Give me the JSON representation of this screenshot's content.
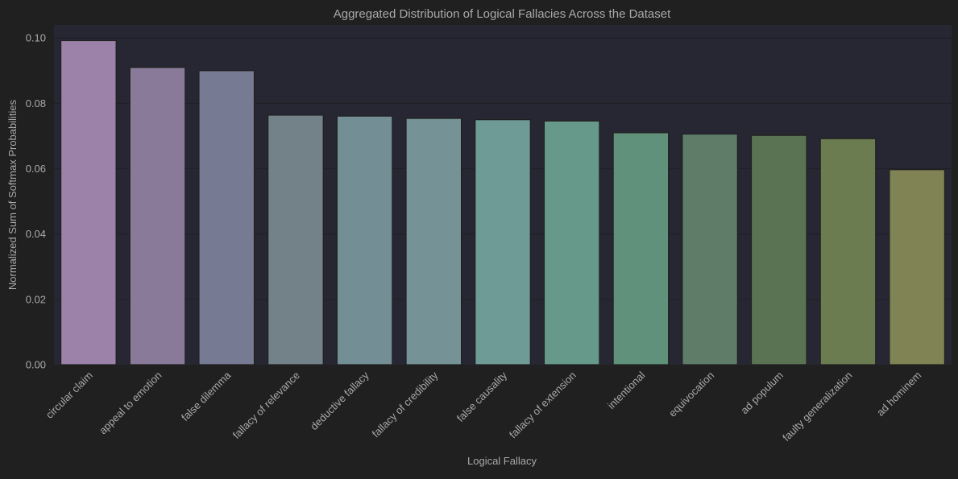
{
  "chart_data": {
    "type": "bar",
    "title": "Aggregated Distribution of Logical Fallacies Across the Dataset",
    "xlabel": "Logical Fallacy",
    "ylabel": "Normalized Sum of Softmax Probabilities",
    "ylim": [
      0,
      0.104
    ],
    "yticks": [
      0.0,
      0.02,
      0.04,
      0.06,
      0.08,
      0.1
    ],
    "ytick_labels": [
      "0.00",
      "0.02",
      "0.04",
      "0.06",
      "0.08",
      "0.10"
    ],
    "grid": true,
    "legend": "none",
    "categories": [
      "circular claim",
      "appeal to emotion",
      "false dilemma",
      "fallacy of relevance",
      "deductive fallacy",
      "fallacy of credibility",
      "false causality",
      "fallacy of extension",
      "intentional",
      "equivocation",
      "ad populum",
      "faulty generalization",
      "ad hominem"
    ],
    "values": [
      0.0992,
      0.091,
      0.09,
      0.0764,
      0.0761,
      0.0754,
      0.075,
      0.0746,
      0.071,
      0.0706,
      0.0702,
      0.0692,
      0.0597
    ],
    "colors": [
      "#9c82a9",
      "#8a7a9a",
      "#767a92",
      "#738289",
      "#738e95",
      "#759396",
      "#6f9b97",
      "#66998a",
      "#60917b",
      "#5e7c68",
      "#5a7353",
      "#6c7c51",
      "#808353"
    ],
    "theme": {
      "background": "#202020",
      "plot_background": "#272733",
      "grid_color": "#1f1f27",
      "text_color": "#a9a9a9",
      "bar_edge": "#202020"
    }
  }
}
